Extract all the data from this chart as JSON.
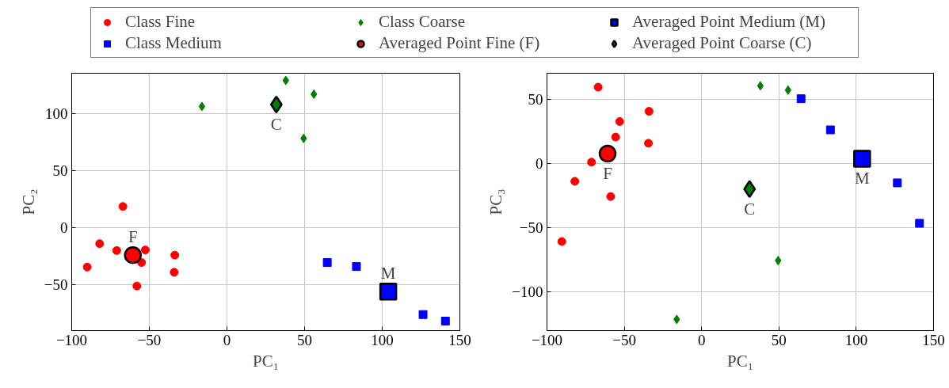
{
  "chart_data": [
    {
      "type": "scatter",
      "xlabel": "PC₁",
      "ylabel": "PC₂",
      "xlim": [
        -100,
        150
      ],
      "ylim": [
        -90,
        135
      ],
      "xticks": [
        -100,
        -50,
        0,
        50,
        100,
        150
      ],
      "yticks": [
        -50,
        0,
        50,
        100
      ],
      "grid": true,
      "legend": "top",
      "series": [
        {
          "name": "Class Fine",
          "color": "#ff0000",
          "marker": "circle",
          "x": [
            -90,
            -82,
            -67,
            -71,
            -58,
            -55,
            -52.6,
            -33.6,
            -34
          ],
          "values": [
            -34.5,
            -14,
            18.5,
            -20,
            -51,
            -30.5,
            -19.5,
            -24,
            -39
          ]
        },
        {
          "name": "Class Medium",
          "color": "#0000ff",
          "marker": "square",
          "x": [
            64.6,
            83.4,
            126.3,
            140.7
          ],
          "values": [
            -30.5,
            -34,
            -76,
            -81.7
          ]
        },
        {
          "name": "Class Coarse",
          "color": "#008000",
          "marker": "diamond",
          "x": [
            -16.1,
            37.9,
            56,
            49.4
          ],
          "values": [
            106,
            128.7,
            116.7,
            78
          ]
        },
        {
          "name": "Averaged Point Fine (F)",
          "color": "#ff0000",
          "marker": "circle",
          "x": [
            -60.6
          ],
          "values": [
            -24
          ]
        },
        {
          "name": "Averaged Point Medium (M)",
          "color": "#0000ff",
          "marker": "square",
          "x": [
            103.9
          ],
          "values": [
            -55.9
          ]
        },
        {
          "name": "Averaged Point Coarse (C)",
          "color": "#008000",
          "marker": "diamond",
          "x": [
            31.8
          ],
          "values": [
            107.7
          ]
        }
      ],
      "annotations": [
        {
          "text": "F",
          "x": -60.6,
          "y": -24
        },
        {
          "text": "M",
          "x": 103.9,
          "y": -55.9
        },
        {
          "text": "C",
          "x": 31.8,
          "y": 107.7
        }
      ]
    },
    {
      "type": "scatter",
      "xlabel": "PC₁",
      "ylabel": "PC₃",
      "xlim": [
        -100,
        150
      ],
      "ylim": [
        -130,
        70
      ],
      "xticks": [
        -100,
        -50,
        0,
        50,
        100,
        150
      ],
      "yticks": [
        -100,
        -50,
        0,
        50
      ],
      "grid": true,
      "series": [
        {
          "color": "#ff0000",
          "marker": "circle",
          "x": [
            -90.4,
            -82,
            -66.9,
            -71.2,
            -58.8,
            -55.6,
            -53,
            -34.4,
            -34
          ],
          "values": [
            -60.8,
            -14,
            59.2,
            0.9,
            -25.8,
            20.4,
            32.5,
            15.6,
            40.4
          ]
        },
        {
          "color": "#0000ff",
          "marker": "square",
          "x": [
            64.3,
            83.3,
            126.6,
            140.9
          ],
          "values": [
            50.2,
            26,
            -15.2,
            -46.6
          ]
        },
        {
          "color": "#008000",
          "marker": "diamond",
          "x": [
            -16.1,
            38,
            55.9,
            49.5
          ],
          "values": [
            -121.3,
            60.2,
            56.9,
            -75.6
          ]
        },
        {
          "color": "#ff0000",
          "marker": "circle",
          "x": [
            -60.8
          ],
          "values": [
            7.5
          ]
        },
        {
          "color": "#0000ff",
          "marker": "square",
          "x": [
            103.8
          ],
          "values": [
            3.6
          ]
        },
        {
          "color": "#008000",
          "marker": "diamond",
          "x": [
            31
          ],
          "values": [
            -20
          ]
        }
      ],
      "annotations": [
        {
          "text": "F",
          "x": -60.8,
          "y": 7.5
        },
        {
          "text": "M",
          "x": 103.8,
          "y": 3.6
        },
        {
          "text": "C",
          "x": 31,
          "y": -20
        }
      ]
    }
  ]
}
